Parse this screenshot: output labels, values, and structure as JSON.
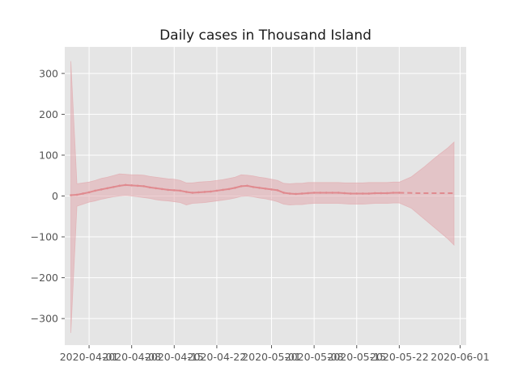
{
  "chart_data": {
    "type": "line",
    "title": "Daily cases in Thousand Island",
    "xlabel": "",
    "ylabel": "",
    "x_axis": "date",
    "xlim": [
      "2020-03-28",
      "2020-06-02"
    ],
    "ylim": [
      -365,
      365
    ],
    "grid": true,
    "style": "ggplot (gray panel, white grid)",
    "x_ticks": [
      "2020-04-01",
      "2020-04-08",
      "2020-04-15",
      "2020-04-22",
      "2020-05-01",
      "2020-05-08",
      "2020-05-15",
      "2020-05-22",
      "2020-06-01"
    ],
    "y_ticks": [
      -300,
      -200,
      -100,
      0,
      100,
      200,
      300
    ],
    "y_tick_labels": [
      "−300",
      "−200",
      "−100",
      "0",
      "100",
      "200",
      "300"
    ],
    "colors": {
      "line": "#e08a8f",
      "band": "#e2a9ae",
      "panel": "#e5e5e5",
      "grid": "#ffffff"
    },
    "series": [
      {
        "style": "solid",
        "points": [
          [
            "2020-03-29",
            2
          ],
          [
            "2020-03-30",
            3
          ],
          [
            "2020-03-31",
            6
          ],
          [
            "2020-04-01",
            9
          ],
          [
            "2020-04-02",
            13
          ],
          [
            "2020-04-03",
            16
          ],
          [
            "2020-04-04",
            19
          ],
          [
            "2020-04-05",
            22
          ],
          [
            "2020-04-06",
            25
          ],
          [
            "2020-04-07",
            27
          ],
          [
            "2020-04-08",
            26
          ],
          [
            "2020-04-09",
            25
          ],
          [
            "2020-04-10",
            24
          ],
          [
            "2020-04-11",
            21
          ],
          [
            "2020-04-12",
            19
          ],
          [
            "2020-04-13",
            17
          ],
          [
            "2020-04-14",
            15
          ],
          [
            "2020-04-15",
            14
          ],
          [
            "2020-04-16",
            13
          ],
          [
            "2020-04-17",
            10
          ],
          [
            "2020-04-18",
            8
          ],
          [
            "2020-04-19",
            9
          ],
          [
            "2020-04-20",
            10
          ],
          [
            "2020-04-21",
            11
          ],
          [
            "2020-04-22",
            13
          ],
          [
            "2020-04-23",
            15
          ],
          [
            "2020-04-24",
            17
          ],
          [
            "2020-04-25",
            20
          ],
          [
            "2020-04-26",
            24
          ],
          [
            "2020-04-27",
            25
          ],
          [
            "2020-04-28",
            22
          ],
          [
            "2020-04-29",
            20
          ],
          [
            "2020-04-30",
            18
          ],
          [
            "2020-05-01",
            16
          ],
          [
            "2020-05-02",
            14
          ],
          [
            "2020-05-03",
            8
          ],
          [
            "2020-05-04",
            6
          ],
          [
            "2020-05-05",
            5
          ],
          [
            "2020-05-06",
            6
          ],
          [
            "2020-05-07",
            7
          ],
          [
            "2020-05-08",
            8
          ],
          [
            "2020-05-09",
            8
          ],
          [
            "2020-05-10",
            8
          ],
          [
            "2020-05-11",
            8
          ],
          [
            "2020-05-12",
            8
          ],
          [
            "2020-05-13",
            7
          ],
          [
            "2020-05-14",
            6
          ],
          [
            "2020-05-15",
            6
          ],
          [
            "2020-05-16",
            6
          ],
          [
            "2020-05-17",
            6
          ],
          [
            "2020-05-18",
            7
          ],
          [
            "2020-05-19",
            7
          ],
          [
            "2020-05-20",
            7
          ],
          [
            "2020-05-21",
            8
          ],
          [
            "2020-05-22",
            8
          ]
        ]
      },
      {
        "style": "dashed",
        "points": [
          [
            "2020-05-22",
            8
          ],
          [
            "2020-05-25",
            7
          ],
          [
            "2020-05-28",
            7
          ],
          [
            "2020-05-31",
            7
          ]
        ]
      }
    ],
    "confidence_band": [
      [
        "2020-03-29",
        -335,
        330
      ],
      [
        "2020-03-30",
        -25,
        30
      ],
      [
        "2020-03-31",
        -20,
        32
      ],
      [
        "2020-04-01",
        -15,
        34
      ],
      [
        "2020-04-02",
        -12,
        38
      ],
      [
        "2020-04-03",
        -8,
        43
      ],
      [
        "2020-04-04",
        -5,
        46
      ],
      [
        "2020-04-05",
        -2,
        50
      ],
      [
        "2020-04-06",
        0,
        54
      ],
      [
        "2020-04-07",
        1,
        53
      ],
      [
        "2020-04-08",
        0,
        52
      ],
      [
        "2020-04-09",
        -2,
        52
      ],
      [
        "2020-04-10",
        -4,
        51
      ],
      [
        "2020-04-11",
        -6,
        48
      ],
      [
        "2020-04-12",
        -9,
        46
      ],
      [
        "2020-04-13",
        -11,
        44
      ],
      [
        "2020-04-14",
        -12,
        42
      ],
      [
        "2020-04-15",
        -14,
        41
      ],
      [
        "2020-04-16",
        -16,
        38
      ],
      [
        "2020-04-17",
        -22,
        32
      ],
      [
        "2020-04-18",
        -18,
        32
      ],
      [
        "2020-04-19",
        -17,
        34
      ],
      [
        "2020-04-20",
        -16,
        35
      ],
      [
        "2020-04-21",
        -14,
        36
      ],
      [
        "2020-04-22",
        -12,
        38
      ],
      [
        "2020-04-23",
        -10,
        40
      ],
      [
        "2020-04-24",
        -8,
        43
      ],
      [
        "2020-04-25",
        -5,
        46
      ],
      [
        "2020-04-26",
        -1,
        52
      ],
      [
        "2020-04-27",
        0,
        51
      ],
      [
        "2020-04-28",
        -2,
        49
      ],
      [
        "2020-04-29",
        -5,
        46
      ],
      [
        "2020-04-30",
        -7,
        44
      ],
      [
        "2020-05-01",
        -10,
        41
      ],
      [
        "2020-05-02",
        -14,
        38
      ],
      [
        "2020-05-03",
        -20,
        31
      ],
      [
        "2020-05-04",
        -22,
        30
      ],
      [
        "2020-05-05",
        -21,
        31
      ],
      [
        "2020-05-06",
        -21,
        31
      ],
      [
        "2020-05-07",
        -19,
        33
      ],
      [
        "2020-05-08",
        -18,
        33
      ],
      [
        "2020-05-09",
        -18,
        33
      ],
      [
        "2020-05-10",
        -18,
        33
      ],
      [
        "2020-05-11",
        -18,
        33
      ],
      [
        "2020-05-12",
        -18,
        33
      ],
      [
        "2020-05-13",
        -19,
        32
      ],
      [
        "2020-05-14",
        -20,
        32
      ],
      [
        "2020-05-15",
        -20,
        32
      ],
      [
        "2020-05-16",
        -20,
        32
      ],
      [
        "2020-05-17",
        -19,
        33
      ],
      [
        "2020-05-18",
        -18,
        33
      ],
      [
        "2020-05-19",
        -18,
        33
      ],
      [
        "2020-05-20",
        -18,
        33
      ],
      [
        "2020-05-21",
        -17,
        34
      ],
      [
        "2020-05-22",
        -17,
        34
      ],
      [
        "2020-05-24",
        -30,
        47
      ],
      [
        "2020-05-26",
        -55,
        70
      ],
      [
        "2020-05-28",
        -80,
        95
      ],
      [
        "2020-05-30",
        -105,
        118
      ],
      [
        "2020-05-31",
        -120,
        132
      ]
    ]
  }
}
